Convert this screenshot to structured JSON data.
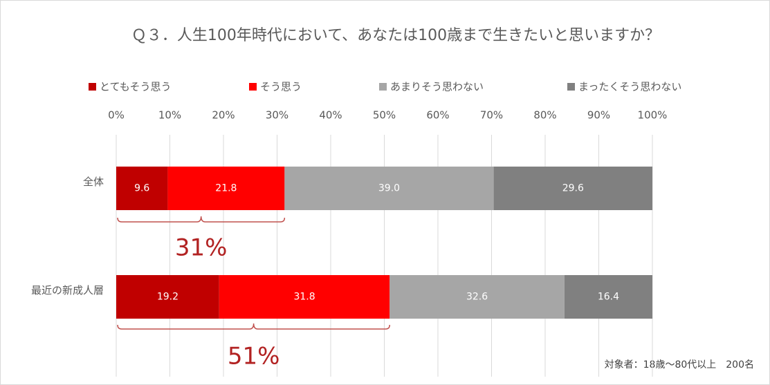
{
  "chart_data": {
    "type": "stacked-bar-horizontal",
    "title": "Ｑ３．人生100年時代において、あなたは100歳まで生きたいと思いますか？",
    "categories": [
      "全体",
      "最近の新成人層"
    ],
    "series": [
      {
        "name": "とてもそう思う",
        "color": "#c00000",
        "values": [
          9.6,
          19.2
        ]
      },
      {
        "name": "そう思う",
        "color": "#ff0000",
        "values": [
          21.8,
          31.8
        ]
      },
      {
        "name": "あまりそう思わない",
        "color": "#a6a6a6",
        "values": [
          39.0,
          32.6
        ],
        "value_labels": [
          "39.0",
          "32.6"
        ]
      },
      {
        "name": "まったくそう思わない",
        "color": "#808080",
        "values": [
          29.6,
          16.4
        ]
      }
    ],
    "xlim": [
      0,
      100
    ],
    "xticks": [
      {
        "value": 0,
        "label": "0%"
      },
      {
        "value": 10,
        "label": "10%"
      },
      {
        "value": 20,
        "label": "20%"
      },
      {
        "value": 30,
        "label": "30%"
      },
      {
        "value": 40,
        "label": "40%"
      },
      {
        "value": 50,
        "label": "50%"
      },
      {
        "value": 60,
        "label": "60%"
      },
      {
        "value": 70,
        "label": "70%"
      },
      {
        "value": 80,
        "label": "80%"
      },
      {
        "value": 90,
        "label": "90%"
      },
      {
        "value": 100,
        "label": "100%"
      }
    ],
    "grid": true,
    "annotations": [
      "31%",
      "51%"
    ],
    "note": "対象者：18歳～80代以上　200名"
  }
}
